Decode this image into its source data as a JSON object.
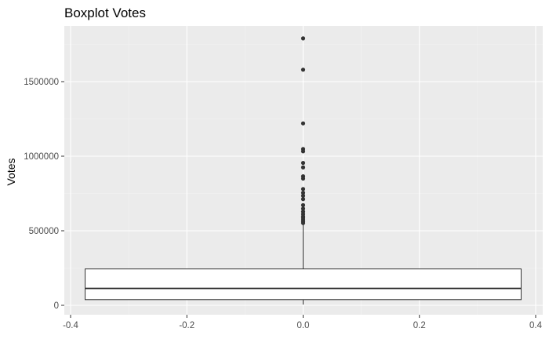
{
  "chart_data": {
    "type": "boxplot",
    "title": "Boxplot Votes",
    "xlabel": "",
    "ylabel": "Votes",
    "xlim": [
      -0.4,
      0.4
    ],
    "ylim": [
      0,
      1790000
    ],
    "x_ticks": [
      -0.4,
      -0.2,
      0.0,
      0.2,
      0.4
    ],
    "x_tick_labels": [
      "-0.4",
      "-0.2",
      "0.0",
      "0.2",
      "0.4"
    ],
    "y_ticks": [
      0,
      500000,
      1000000,
      1500000
    ],
    "y_tick_labels": [
      "0",
      "500000",
      "1000000",
      "1500000"
    ],
    "grid": true,
    "box": {
      "x_center": 0.0,
      "x_min": -0.375,
      "x_max": 0.375,
      "whisker_low": 5000,
      "q1": 38000,
      "median": 113000,
      "q3": 244000,
      "whisker_high": 545000
    },
    "outliers": [
      1790000,
      1580000,
      1220000,
      1048000,
      1033000,
      955000,
      925000,
      865000,
      850000,
      780000,
      755000,
      735000,
      712000,
      672000,
      648000,
      628000,
      612000,
      597000,
      586000,
      574000,
      562000,
      552000
    ],
    "colors": {
      "panel": "#ebebeb",
      "grid_major": "#ffffff",
      "grid_minor": "#f4f4f4",
      "box_fill": "#ffffff",
      "box_stroke": "#333333",
      "outlier": "#333333",
      "axis_tick": "#333333"
    }
  }
}
